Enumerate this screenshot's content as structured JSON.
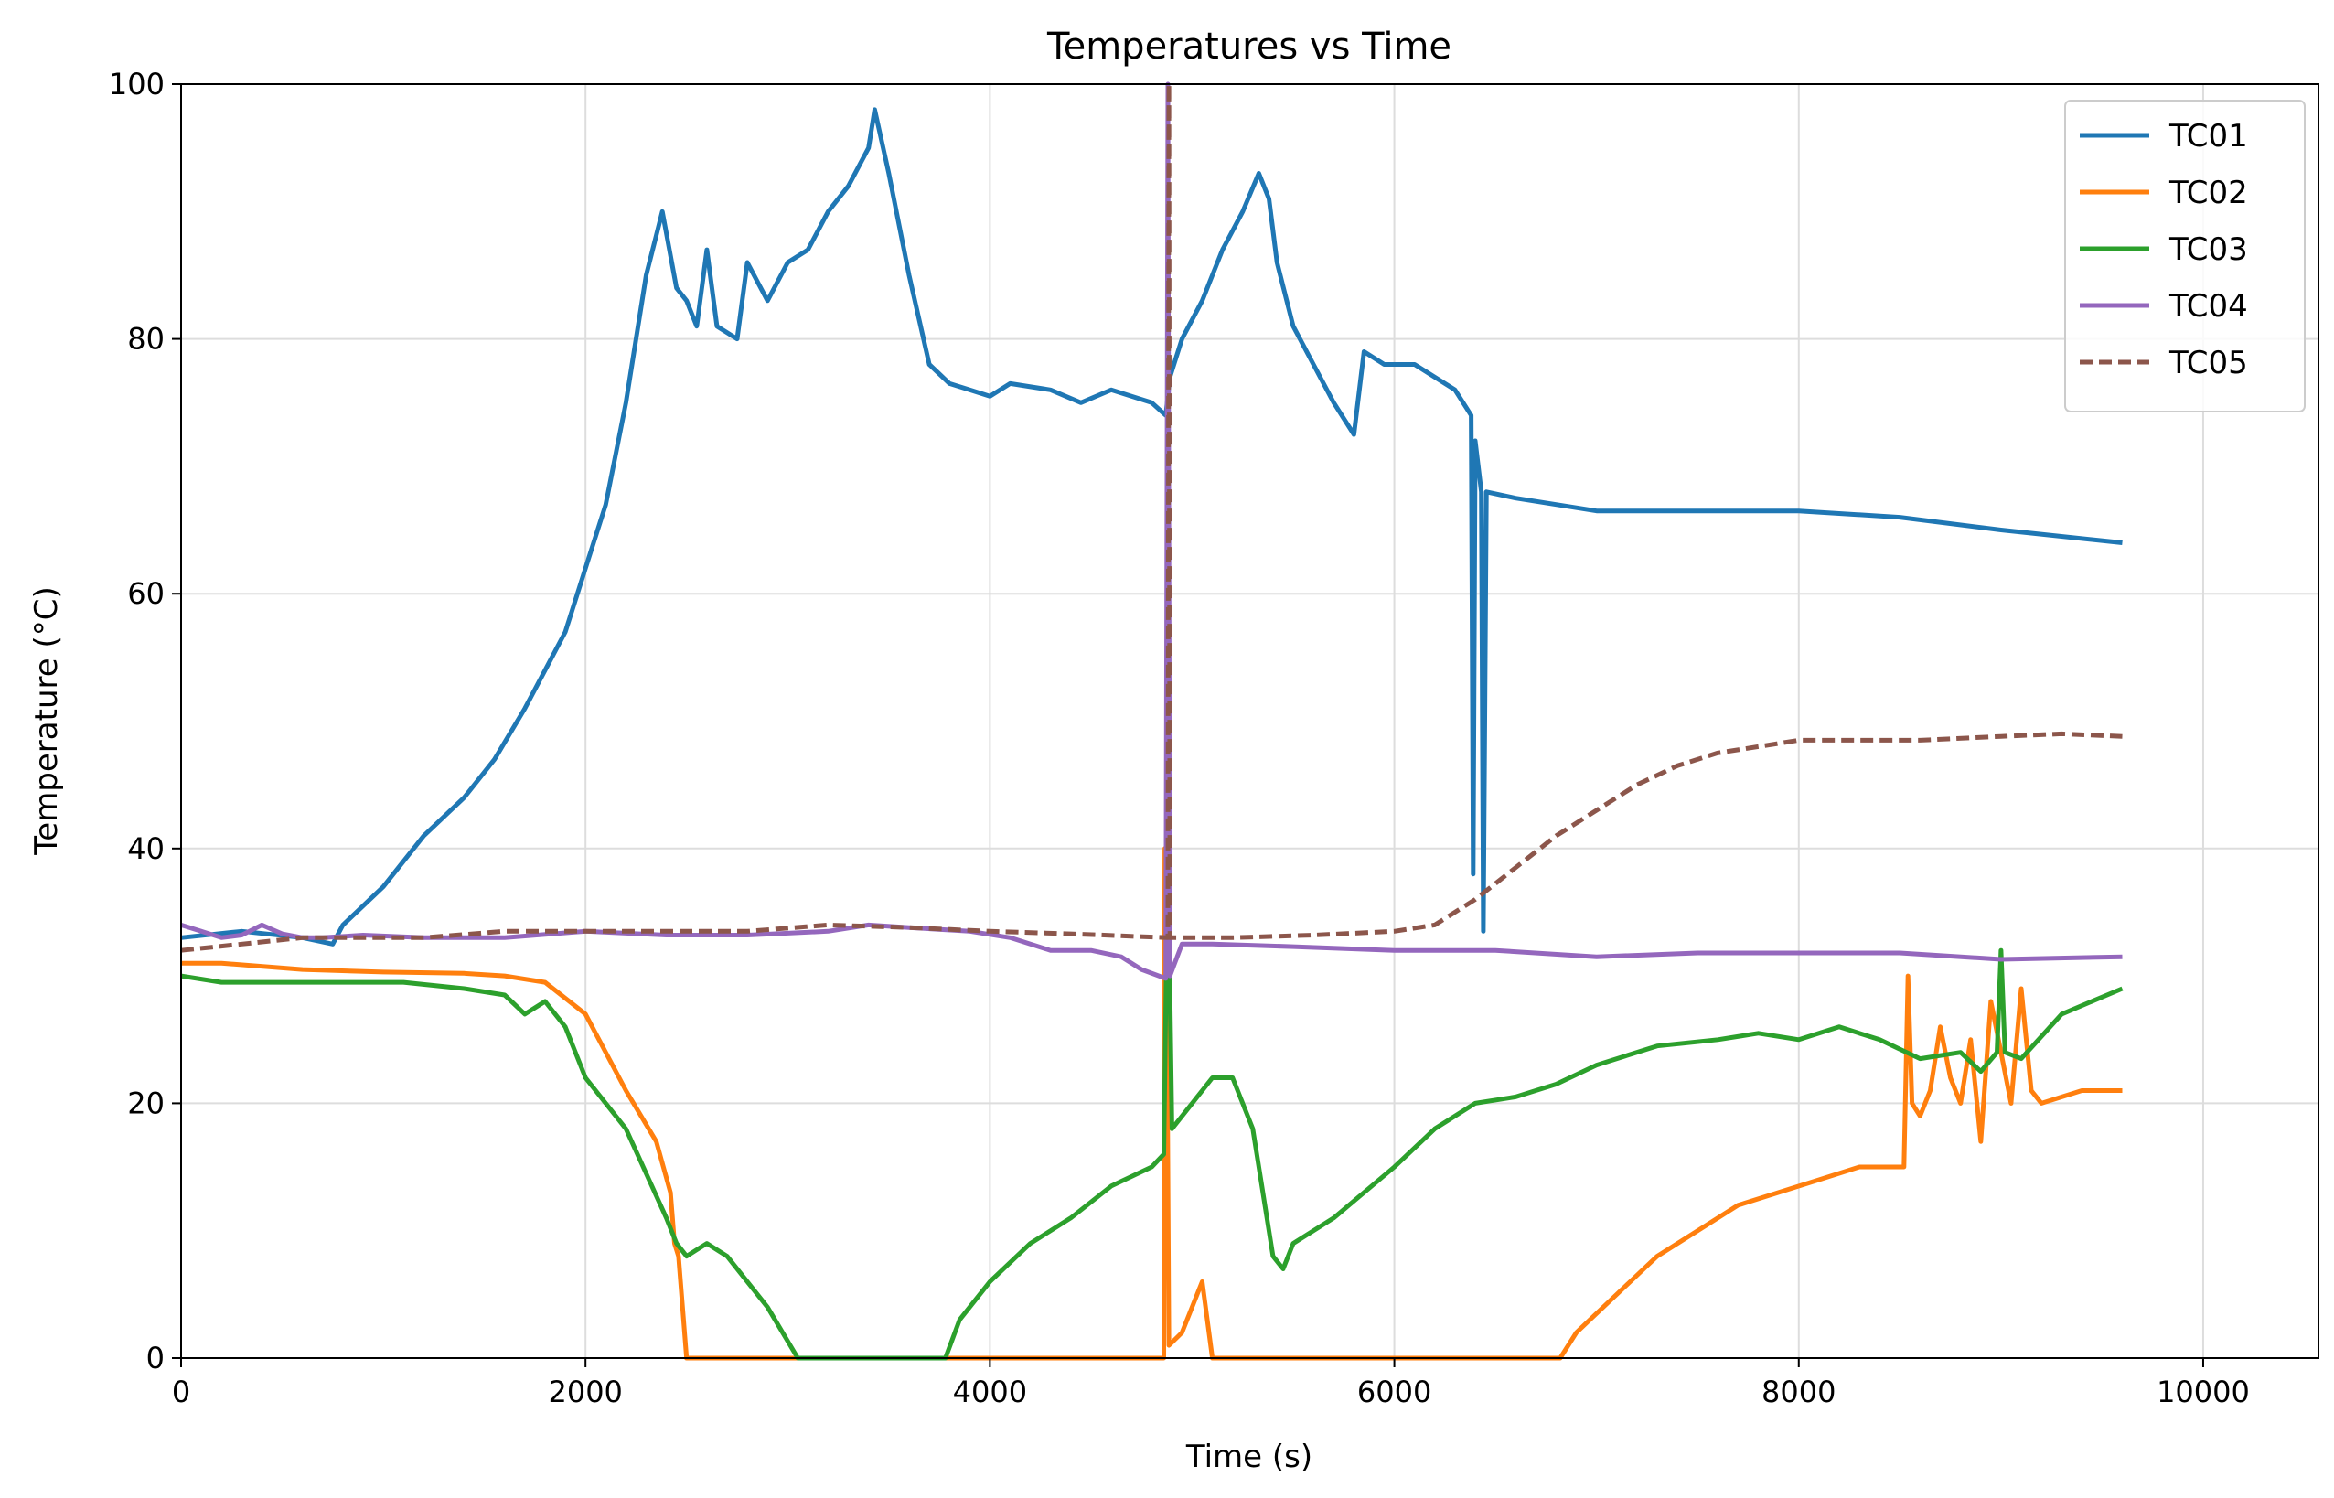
{
  "chart_data": {
    "type": "line",
    "title": "Temperatures vs Time",
    "xlabel": "Time (s)",
    "ylabel": "Temperature (°C)",
    "xlim": [
      0,
      10570
    ],
    "ylim": [
      0,
      100
    ],
    "xticks": [
      "0",
      "2000",
      "4000",
      "6000",
      "8000",
      "10000"
    ],
    "yticks": [
      "0",
      "20",
      "40",
      "60",
      "80",
      "100"
    ],
    "grid": true,
    "legend_position": "upper right",
    "series": [
      {
        "name": "TC01",
        "color": "#1f77b4",
        "style": "solid",
        "points": [
          [
            0,
            33
          ],
          [
            300,
            33.5
          ],
          [
            600,
            33
          ],
          [
            750,
            32.5
          ],
          [
            800,
            34
          ],
          [
            1000,
            37
          ],
          [
            1200,
            41
          ],
          [
            1400,
            44
          ],
          [
            1550,
            47
          ],
          [
            1700,
            51
          ],
          [
            1800,
            54
          ],
          [
            1900,
            57
          ],
          [
            2000,
            62
          ],
          [
            2100,
            67
          ],
          [
            2200,
            75
          ],
          [
            2300,
            85
          ],
          [
            2380,
            90
          ],
          [
            2450,
            84
          ],
          [
            2500,
            83
          ],
          [
            2550,
            81
          ],
          [
            2600,
            87
          ],
          [
            2650,
            81
          ],
          [
            2750,
            80
          ],
          [
            2800,
            86
          ],
          [
            2900,
            83
          ],
          [
            3000,
            86
          ],
          [
            3100,
            87
          ],
          [
            3200,
            90
          ],
          [
            3300,
            92
          ],
          [
            3400,
            95
          ],
          [
            3430,
            98
          ],
          [
            3500,
            93
          ],
          [
            3600,
            85
          ],
          [
            3700,
            78
          ],
          [
            3800,
            76.5
          ],
          [
            3900,
            76
          ],
          [
            4000,
            75.5
          ],
          [
            4100,
            76.5
          ],
          [
            4300,
            76
          ],
          [
            4450,
            75
          ],
          [
            4600,
            76
          ],
          [
            4800,
            75
          ],
          [
            4870,
            74
          ],
          [
            4890,
            77
          ],
          [
            4950,
            80
          ],
          [
            5050,
            83
          ],
          [
            5150,
            87
          ],
          [
            5250,
            90
          ],
          [
            5330,
            93
          ],
          [
            5380,
            91
          ],
          [
            5420,
            86
          ],
          [
            5500,
            81
          ],
          [
            5600,
            78
          ],
          [
            5700,
            75
          ],
          [
            5800,
            72.5
          ],
          [
            5850,
            79
          ],
          [
            5950,
            78
          ],
          [
            6100,
            78
          ],
          [
            6200,
            77
          ],
          [
            6300,
            76
          ],
          [
            6380,
            74
          ],
          [
            6390,
            38
          ],
          [
            6400,
            72
          ],
          [
            6430,
            68
          ],
          [
            6440,
            33.5
          ],
          [
            6455,
            68
          ],
          [
            6600,
            67.5
          ],
          [
            7000,
            66.5
          ],
          [
            7500,
            66.5
          ],
          [
            8000,
            66.5
          ],
          [
            8500,
            66
          ],
          [
            9000,
            65
          ],
          [
            9600,
            64
          ]
        ]
      },
      {
        "name": "TC02",
        "color": "#ff7f0e",
        "style": "solid",
        "points": [
          [
            0,
            31
          ],
          [
            200,
            31
          ],
          [
            600,
            30.5
          ],
          [
            1000,
            30.3
          ],
          [
            1400,
            30.2
          ],
          [
            1600,
            30
          ],
          [
            1800,
            29.5
          ],
          [
            2000,
            27
          ],
          [
            2200,
            21
          ],
          [
            2350,
            17
          ],
          [
            2420,
            13
          ],
          [
            2440,
            9
          ],
          [
            2460,
            8
          ],
          [
            2500,
            0
          ],
          [
            4860,
            0
          ],
          [
            4865,
            40
          ],
          [
            4875,
            28
          ],
          [
            4885,
            1
          ],
          [
            4950,
            2
          ],
          [
            5050,
            6
          ],
          [
            5100,
            0
          ],
          [
            6820,
            0
          ],
          [
            6900,
            2
          ],
          [
            7100,
            5
          ],
          [
            7300,
            8
          ],
          [
            7500,
            10
          ],
          [
            7700,
            12
          ],
          [
            7900,
            13
          ],
          [
            8100,
            14
          ],
          [
            8300,
            15
          ],
          [
            8520,
            15
          ],
          [
            8540,
            30
          ],
          [
            8560,
            20
          ],
          [
            8600,
            19
          ],
          [
            8650,
            21
          ],
          [
            8700,
            26
          ],
          [
            8750,
            22
          ],
          [
            8800,
            20
          ],
          [
            8850,
            25
          ],
          [
            8900,
            17
          ],
          [
            8950,
            28
          ],
          [
            9000,
            24
          ],
          [
            9050,
            20
          ],
          [
            9100,
            29
          ],
          [
            9150,
            21
          ],
          [
            9200,
            20
          ],
          [
            9400,
            21
          ],
          [
            9600,
            21
          ]
        ]
      },
      {
        "name": "TC03",
        "color": "#2ca02c",
        "style": "solid",
        "points": [
          [
            0,
            30
          ],
          [
            200,
            29.5
          ],
          [
            500,
            29.5
          ],
          [
            800,
            29.5
          ],
          [
            1100,
            29.5
          ],
          [
            1400,
            29
          ],
          [
            1600,
            28.5
          ],
          [
            1700,
            27
          ],
          [
            1800,
            28
          ],
          [
            1900,
            26
          ],
          [
            2000,
            22
          ],
          [
            2200,
            18
          ],
          [
            2400,
            11
          ],
          [
            2450,
            9
          ],
          [
            2500,
            8
          ],
          [
            2600,
            9
          ],
          [
            2700,
            8
          ],
          [
            2900,
            4
          ],
          [
            3050,
            0
          ],
          [
            3780,
            0
          ],
          [
            3850,
            3
          ],
          [
            4000,
            6
          ],
          [
            4200,
            9
          ],
          [
            4400,
            11
          ],
          [
            4600,
            13.5
          ],
          [
            4800,
            15
          ],
          [
            4860,
            16
          ],
          [
            4880,
            40
          ],
          [
            4900,
            18
          ],
          [
            5000,
            20
          ],
          [
            5100,
            22
          ],
          [
            5200,
            22
          ],
          [
            5300,
            18
          ],
          [
            5400,
            8
          ],
          [
            5450,
            7
          ],
          [
            5500,
            9
          ],
          [
            5700,
            11
          ],
          [
            6000,
            15
          ],
          [
            6200,
            18
          ],
          [
            6400,
            20
          ],
          [
            6600,
            20.5
          ],
          [
            6800,
            21.5
          ],
          [
            7000,
            23
          ],
          [
            7300,
            24.5
          ],
          [
            7600,
            25
          ],
          [
            7800,
            25.5
          ],
          [
            8000,
            25
          ],
          [
            8200,
            26
          ],
          [
            8400,
            25
          ],
          [
            8600,
            23.5
          ],
          [
            8800,
            24
          ],
          [
            8900,
            22.5
          ],
          [
            8980,
            24
          ],
          [
            9000,
            32
          ],
          [
            9020,
            24
          ],
          [
            9100,
            23.5
          ],
          [
            9300,
            27
          ],
          [
            9600,
            29
          ]
        ]
      },
      {
        "name": "TC04",
        "color": "#9467bd",
        "style": "solid",
        "points": [
          [
            0,
            34
          ],
          [
            100,
            33.5
          ],
          [
            200,
            33
          ],
          [
            300,
            33.2
          ],
          [
            400,
            34
          ],
          [
            500,
            33.3
          ],
          [
            600,
            33
          ],
          [
            700,
            33
          ],
          [
            900,
            33.2
          ],
          [
            1200,
            33
          ],
          [
            1600,
            33
          ],
          [
            2000,
            33.5
          ],
          [
            2400,
            33.2
          ],
          [
            2800,
            33.2
          ],
          [
            3200,
            33.5
          ],
          [
            3400,
            34
          ],
          [
            3600,
            33.8
          ],
          [
            3900,
            33.5
          ],
          [
            4100,
            33
          ],
          [
            4300,
            32
          ],
          [
            4500,
            32
          ],
          [
            4650,
            31.5
          ],
          [
            4750,
            30.5
          ],
          [
            4870,
            29.8
          ],
          [
            4880,
            100
          ],
          [
            4890,
            30
          ],
          [
            4950,
            32.5
          ],
          [
            5100,
            32.5
          ],
          [
            5500,
            32.3
          ],
          [
            6000,
            32
          ],
          [
            6500,
            32
          ],
          [
            7000,
            31.5
          ],
          [
            7500,
            31.8
          ],
          [
            8000,
            31.8
          ],
          [
            8500,
            31.8
          ],
          [
            9000,
            31.3
          ],
          [
            9600,
            31.5
          ]
        ]
      },
      {
        "name": "TC05",
        "color": "#8c564b",
        "style": "dashed",
        "points": [
          [
            0,
            32
          ],
          [
            300,
            32.5
          ],
          [
            600,
            33
          ],
          [
            900,
            33
          ],
          [
            1200,
            33
          ],
          [
            1600,
            33.5
          ],
          [
            2000,
            33.5
          ],
          [
            2400,
            33.5
          ],
          [
            2800,
            33.5
          ],
          [
            3200,
            34
          ],
          [
            3600,
            33.8
          ],
          [
            4000,
            33.5
          ],
          [
            4400,
            33.3
          ],
          [
            4880,
            33
          ],
          [
            4885,
            100
          ],
          [
            4890,
            33
          ],
          [
            5200,
            33
          ],
          [
            5600,
            33.2
          ],
          [
            6000,
            33.5
          ],
          [
            6200,
            34
          ],
          [
            6400,
            36
          ],
          [
            6600,
            38.5
          ],
          [
            6800,
            41
          ],
          [
            7000,
            43
          ],
          [
            7200,
            45
          ],
          [
            7400,
            46.5
          ],
          [
            7600,
            47.5
          ],
          [
            7800,
            48
          ],
          [
            8000,
            48.5
          ],
          [
            8200,
            48.5
          ],
          [
            8600,
            48.5
          ],
          [
            9000,
            48.8
          ],
          [
            9300,
            49
          ],
          [
            9600,
            48.8
          ]
        ]
      }
    ]
  }
}
